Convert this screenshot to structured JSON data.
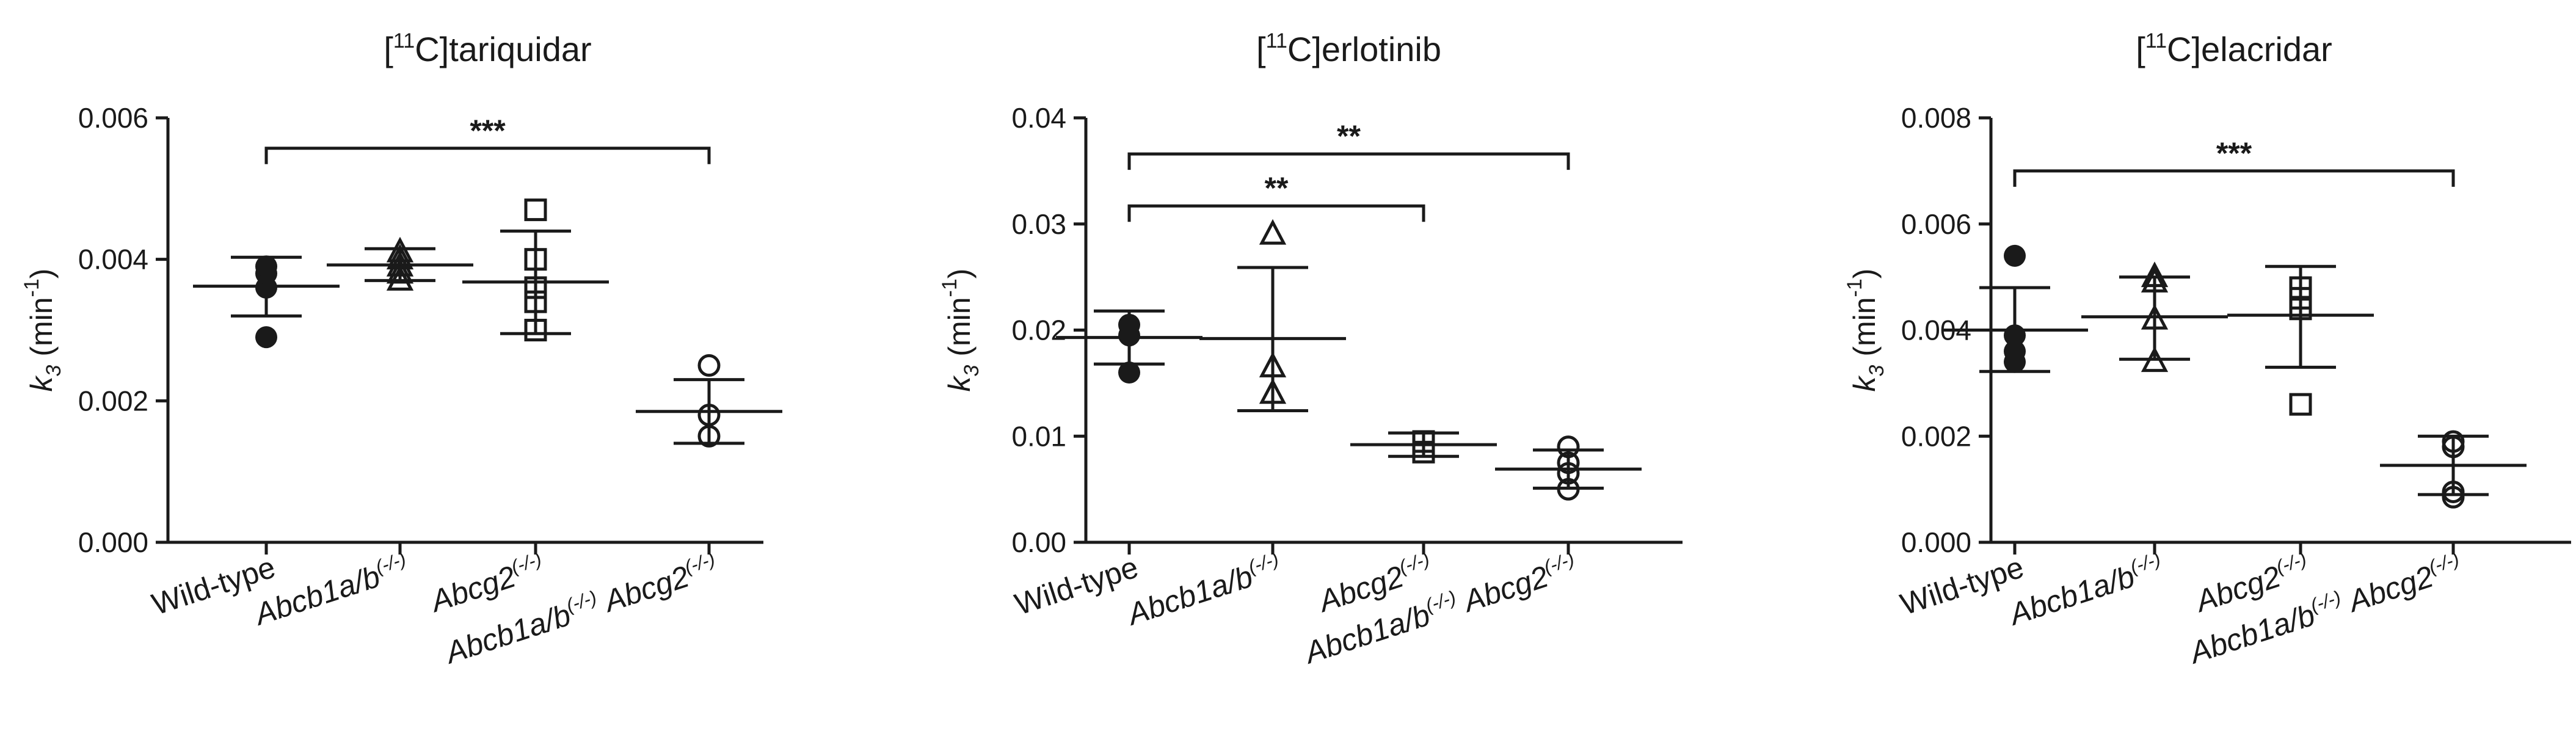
{
  "chart_data": [
    {
      "type": "scatter",
      "title": {
        "pre": "[",
        "sup": "11",
        "post": "C]tariquidar"
      },
      "ylabel": {
        "italic": "k",
        "sub": "3",
        "pre": " (min",
        "sup": "-1",
        "post": ")"
      },
      "ylim": [
        0,
        0.006
      ],
      "yticks": [
        "0.000",
        "0.002",
        "0.004",
        "0.006"
      ],
      "ytick_values": [
        0,
        0.002,
        0.004,
        0.006
      ],
      "categories": [
        {
          "parts": [
            {
              "t": "Wild-type",
              "s": ""
            }
          ]
        },
        {
          "parts": [
            {
              "t": "Abcb1a/b",
              "s": "(-/-)"
            }
          ]
        },
        {
          "parts": [
            {
              "t": "Abcg2",
              "s": "(-/-)"
            }
          ]
        },
        {
          "parts": [
            {
              "t": "Abcb1a/b",
              "s": "(-/-)"
            },
            {
              "t": " Abcg2",
              "s": "(-/-)"
            }
          ]
        }
      ],
      "series": [
        {
          "marker": "circle-filled",
          "points": [
            0.0029,
            0.0036,
            0.0038,
            0.0039
          ],
          "mean": 0.00362,
          "err": [
            0.0032,
            0.00403
          ]
        },
        {
          "marker": "triangle",
          "points": [
            0.0037,
            0.0038,
            0.0039,
            0.004,
            0.0041
          ],
          "mean": 0.00392,
          "err": [
            0.0037,
            0.00415
          ]
        },
        {
          "marker": "square",
          "points": [
            0.003,
            0.0034,
            0.0036,
            0.004,
            0.0047
          ],
          "mean": 0.00368,
          "err": [
            0.00295,
            0.0044
          ]
        },
        {
          "marker": "circle",
          "points": [
            0.0015,
            0.0018,
            0.0025
          ],
          "mean": 0.00185,
          "err": [
            0.0014,
            0.0023
          ]
        }
      ],
      "significance": [
        {
          "from": 0,
          "to": 3,
          "label": "***",
          "y": 0.00557
        }
      ]
    },
    {
      "type": "scatter",
      "title": {
        "pre": "[",
        "sup": "11",
        "post": "C]erlotinib"
      },
      "ylabel": {
        "italic": "k",
        "sub": "3",
        "pre": " (min",
        "sup": "-1",
        "post": ")"
      },
      "ylim": [
        0,
        0.04
      ],
      "yticks": [
        "0.00",
        "0.01",
        "0.02",
        "0.03",
        "0.04"
      ],
      "ytick_values": [
        0,
        0.01,
        0.02,
        0.03,
        0.04
      ],
      "categories": [
        {
          "parts": [
            {
              "t": "Wild-type",
              "s": ""
            }
          ]
        },
        {
          "parts": [
            {
              "t": "Abcb1a/b",
              "s": "(-/-)"
            }
          ]
        },
        {
          "parts": [
            {
              "t": "Abcg2",
              "s": "(-/-)"
            }
          ]
        },
        {
          "parts": [
            {
              "t": "Abcb1a/b",
              "s": "(-/-)"
            },
            {
              "t": " Abcg2",
              "s": "(-/-)"
            }
          ]
        }
      ],
      "series": [
        {
          "marker": "circle-filled",
          "points": [
            0.016,
            0.0195,
            0.0205
          ],
          "mean": 0.0193,
          "err": [
            0.0168,
            0.0218
          ]
        },
        {
          "marker": "triangle",
          "points": [
            0.014,
            0.0165,
            0.029
          ],
          "mean": 0.0192,
          "err": [
            0.0124,
            0.0259
          ]
        },
        {
          "marker": "square",
          "points": [
            0.0085,
            0.0095
          ],
          "mean": 0.0092,
          "err": [
            0.0081,
            0.0103
          ]
        },
        {
          "marker": "circle",
          "points": [
            0.005,
            0.0065,
            0.0075,
            0.009
          ],
          "mean": 0.0069,
          "err": [
            0.0051,
            0.0087
          ]
        }
      ],
      "significance": [
        {
          "from": 0,
          "to": 3,
          "label": "**",
          "y": 0.0366
        },
        {
          "from": 0,
          "to": 2,
          "label": "**",
          "y": 0.0317
        }
      ]
    },
    {
      "type": "scatter",
      "title": {
        "pre": "[",
        "sup": "11",
        "post": "C]elacridar"
      },
      "ylabel": {
        "italic": "k",
        "sub": "3",
        "pre": " (min",
        "sup": "-1",
        "post": ")"
      },
      "ylim": [
        0,
        0.008
      ],
      "yticks": [
        "0.000",
        "0.002",
        "0.004",
        "0.006",
        "0.008"
      ],
      "ytick_values": [
        0,
        0.002,
        0.004,
        0.006,
        0.008
      ],
      "categories": [
        {
          "parts": [
            {
              "t": "Wild-type",
              "s": ""
            }
          ]
        },
        {
          "parts": [
            {
              "t": "Abcb1a/b",
              "s": "(-/-)"
            }
          ]
        },
        {
          "parts": [
            {
              "t": "Abcg2",
              "s": "(-/-)"
            }
          ]
        },
        {
          "parts": [
            {
              "t": "Abcb1a/b",
              "s": "(-/-)"
            },
            {
              "t": " Abcg2",
              "s": "(-/-)"
            }
          ]
        }
      ],
      "series": [
        {
          "marker": "circle-filled",
          "points": [
            0.0034,
            0.0036,
            0.0039,
            0.0054
          ],
          "mean": 0.004,
          "err": [
            0.00322,
            0.0048
          ]
        },
        {
          "marker": "triangle",
          "points": [
            0.0034,
            0.0042,
            0.0049,
            0.005
          ],
          "mean": 0.00425,
          "err": [
            0.00345,
            0.005
          ]
        },
        {
          "marker": "square",
          "points": [
            0.0026,
            0.0044,
            0.0046,
            0.0048
          ],
          "mean": 0.00428,
          "err": [
            0.0033,
            0.0052
          ]
        },
        {
          "marker": "circle",
          "points": [
            0.00085,
            0.00095,
            0.0018,
            0.0019
          ],
          "mean": 0.00145,
          "err": [
            0.0009,
            0.002
          ]
        }
      ],
      "significance": [
        {
          "from": 0,
          "to": 3,
          "label": "***",
          "y": 0.007
        }
      ]
    }
  ]
}
